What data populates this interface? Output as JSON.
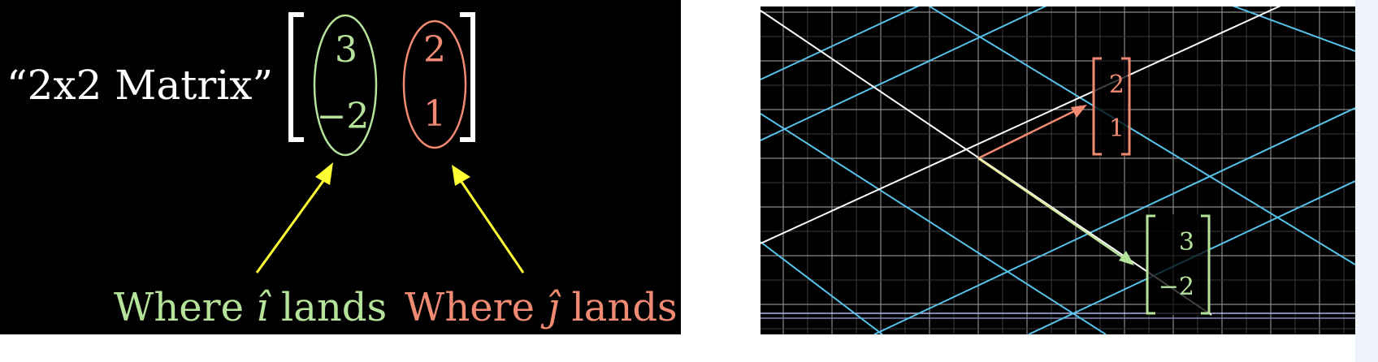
{
  "left": {
    "label_quote_open": "“",
    "label_text": "2x2 Matrix",
    "label_quote_close": "”",
    "col1": {
      "top": "3",
      "bottom": "−2"
    },
    "col2": {
      "top": "2",
      "bottom": "1"
    },
    "caption_i": {
      "word": "Where",
      "hat": "î",
      "tail": "lands"
    },
    "caption_j": {
      "word": "Where",
      "hat": "ĵ",
      "tail": "lands"
    }
  },
  "right": {
    "vec_j": {
      "top": "2",
      "bottom": "1"
    },
    "vec_i": {
      "top": "3",
      "bottom": "−2"
    }
  },
  "colors": {
    "green": "#b5e39a",
    "red": "#f08a72",
    "yellow": "#ffff33",
    "blue": "#57c3ea",
    "grid": "#8a8a8a",
    "white": "#ffffff"
  }
}
